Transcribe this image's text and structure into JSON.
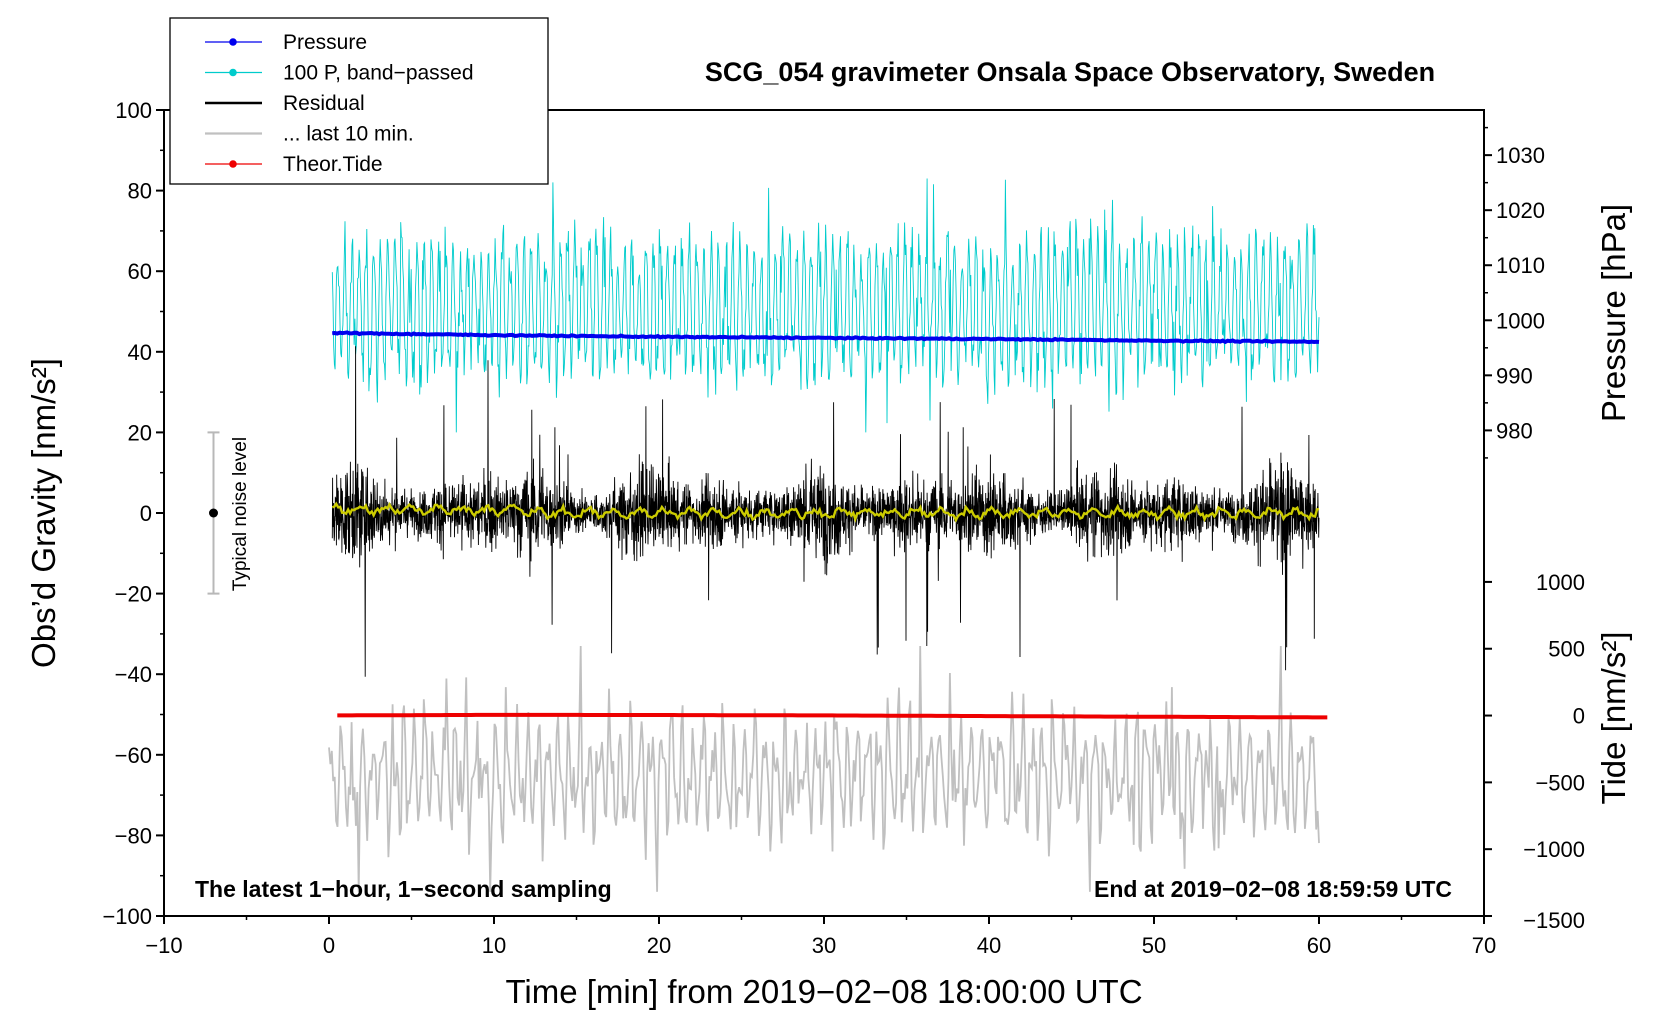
{
  "chart_data": {
    "type": "line",
    "title": "SCG_054 gravimeter Onsala Space Observatory, Sweden",
    "xlabel": "Time [min] from 2019−02−08 18:00:00 UTC",
    "ylabel_left": "Obs’d Gravity [nm/s²]",
    "ylabel_right_top": "Pressure [hPa]",
    "ylabel_right_bottom": "Tide [nm/s²]",
    "xlim": [
      -10,
      70
    ],
    "ylim": [
      -100,
      100
    ],
    "xticks": [
      -10,
      0,
      10,
      20,
      30,
      40,
      50,
      60,
      70
    ],
    "xtick_labels": [
      "−10",
      "0",
      "10",
      "20",
      "30",
      "40",
      "50",
      "60",
      "70"
    ],
    "yticks": [
      -100,
      -80,
      -60,
      -40,
      -20,
      0,
      20,
      40,
      60,
      80,
      100
    ],
    "ytick_labels": [
      "−100",
      "−80",
      "−60",
      "−40",
      "−20",
      "0",
      "20",
      "40",
      "60",
      "80",
      "100"
    ],
    "pressure_axis": {
      "ticks": [
        980,
        990,
        1000,
        1010,
        1020,
        1030
      ],
      "labels": [
        "980",
        "990",
        "1000",
        "1010",
        "1020",
        "1030"
      ],
      "gravity_at_980": 20.5,
      "gravity_at_1030": 88.8
    },
    "tide_axis": {
      "ticks": [
        -1500,
        -1000,
        -500,
        0,
        500,
        1000
      ],
      "labels": [
        "−1500",
        "−1000",
        "−500",
        "0",
        "500",
        "1000"
      ],
      "gravity_at_minus_1500": -100,
      "gravity_at_1000": -17.1
    },
    "series": [
      {
        "name": "Pressure",
        "color": "#0000ee",
        "x": [
          0.2,
          10,
          20,
          30,
          40,
          50,
          60
        ],
        "values": [
          997.7,
          997.3,
          997.0,
          996.8,
          996.6,
          996.3,
          996.1
        ]
      },
      {
        "name": "100 P, band−passed",
        "color": "#00cccc",
        "x_range": [
          0.2,
          60
        ],
        "center": 51,
        "amplitude": 20
      },
      {
        "name": "Residual",
        "color": "#000000",
        "x_range": [
          0.2,
          60
        ],
        "center": 0,
        "amplitude": 14
      },
      {
        "name": "... last 10 min.",
        "color": "#c0c0c0",
        "x_range": [
          0,
          60
        ],
        "center": -65,
        "amplitude": 18
      },
      {
        "name": "Theor.Tide",
        "color": "#ee0000",
        "x": [
          0.5,
          10,
          20,
          30,
          40,
          50,
          60.5
        ],
        "values": [
          1,
          5,
          4,
          1,
          -4,
          -9,
          -14
        ]
      }
    ],
    "smoothed_residual_color": "#cccc00",
    "noise_bar": {
      "label": "Typical noise level",
      "x": -7,
      "center": 0,
      "low": -20,
      "high": 20
    },
    "annotations": {
      "left": "The latest 1−hour, 1−second sampling",
      "right": "End at 2019−02−08 18:59:59 UTC"
    },
    "legend_position": "top-left"
  }
}
